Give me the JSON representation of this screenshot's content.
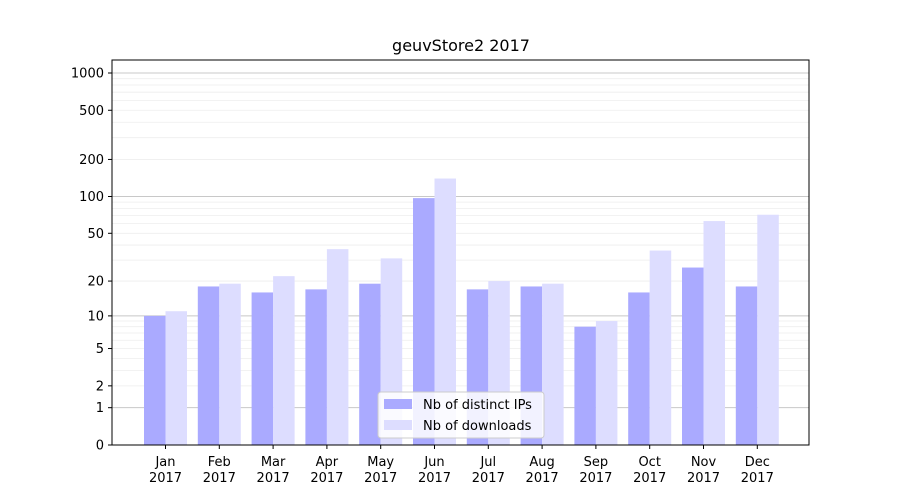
{
  "chart_data": {
    "type": "bar",
    "title": "geuvStore2 2017",
    "categories": [
      [
        "Jan",
        "2017"
      ],
      [
        "Feb",
        "2017"
      ],
      [
        "Mar",
        "2017"
      ],
      [
        "Apr",
        "2017"
      ],
      [
        "May",
        "2017"
      ],
      [
        "Jun",
        "2017"
      ],
      [
        "Jul",
        "2017"
      ],
      [
        "Aug",
        "2017"
      ],
      [
        "Sep",
        "2017"
      ],
      [
        "Oct",
        "2017"
      ],
      [
        "Nov",
        "2017"
      ],
      [
        "Dec",
        "2017"
      ]
    ],
    "series": [
      {
        "name": "Nb of distinct IPs",
        "color": "#aaaaff",
        "values": [
          10,
          18,
          16,
          17,
          19,
          97,
          17,
          18,
          8,
          16,
          26,
          18
        ]
      },
      {
        "name": "Nb of downloads",
        "color": "#ddddff",
        "values": [
          11,
          19,
          22,
          37,
          31,
          140,
          20,
          19,
          9,
          36,
          63,
          71
        ]
      }
    ],
    "yscale": "log1p",
    "yticks": [
      0,
      1,
      2,
      5,
      10,
      20,
      50,
      100,
      200,
      500,
      1000
    ],
    "ylim": [
      0,
      1200
    ],
    "xlabel": "",
    "ylabel": "",
    "legend_position": "lower-center",
    "grid": true
  }
}
